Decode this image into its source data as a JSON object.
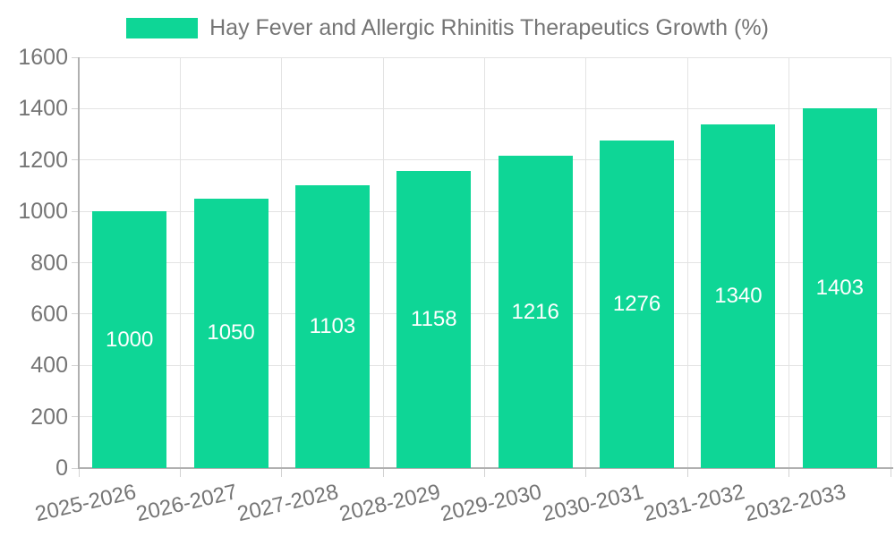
{
  "chart_data": {
    "type": "bar",
    "title": "Hay Fever and Allergic Rhinitis Therapeutics Growth (%)",
    "categories": [
      "2025-2026",
      "2026-2027",
      "2027-2028",
      "2028-2029",
      "2029-2030",
      "2030-2031",
      "2031-2032",
      "2032-2033"
    ],
    "values": [
      1000,
      1050,
      1103,
      1158,
      1216,
      1276,
      1340,
      1403
    ],
    "value_labels": [
      1000,
      1050,
      1103,
      1158,
      1216,
      1276,
      1340,
      1403
    ],
    "xlabel": "",
    "ylabel": "",
    "ylim": [
      0,
      1600
    ],
    "yticks": [
      0,
      200,
      400,
      600,
      800,
      1000,
      1200,
      1400,
      1600
    ],
    "grid": true,
    "legend_position": "top-center",
    "colors": {
      "bar": "#0ed696",
      "value_label": "#ffffff",
      "text": "#757575",
      "grid": "#e3e3e3",
      "tick": "#d2d2d2",
      "axis": "#b0b0b0",
      "background": "#ffffff"
    }
  }
}
